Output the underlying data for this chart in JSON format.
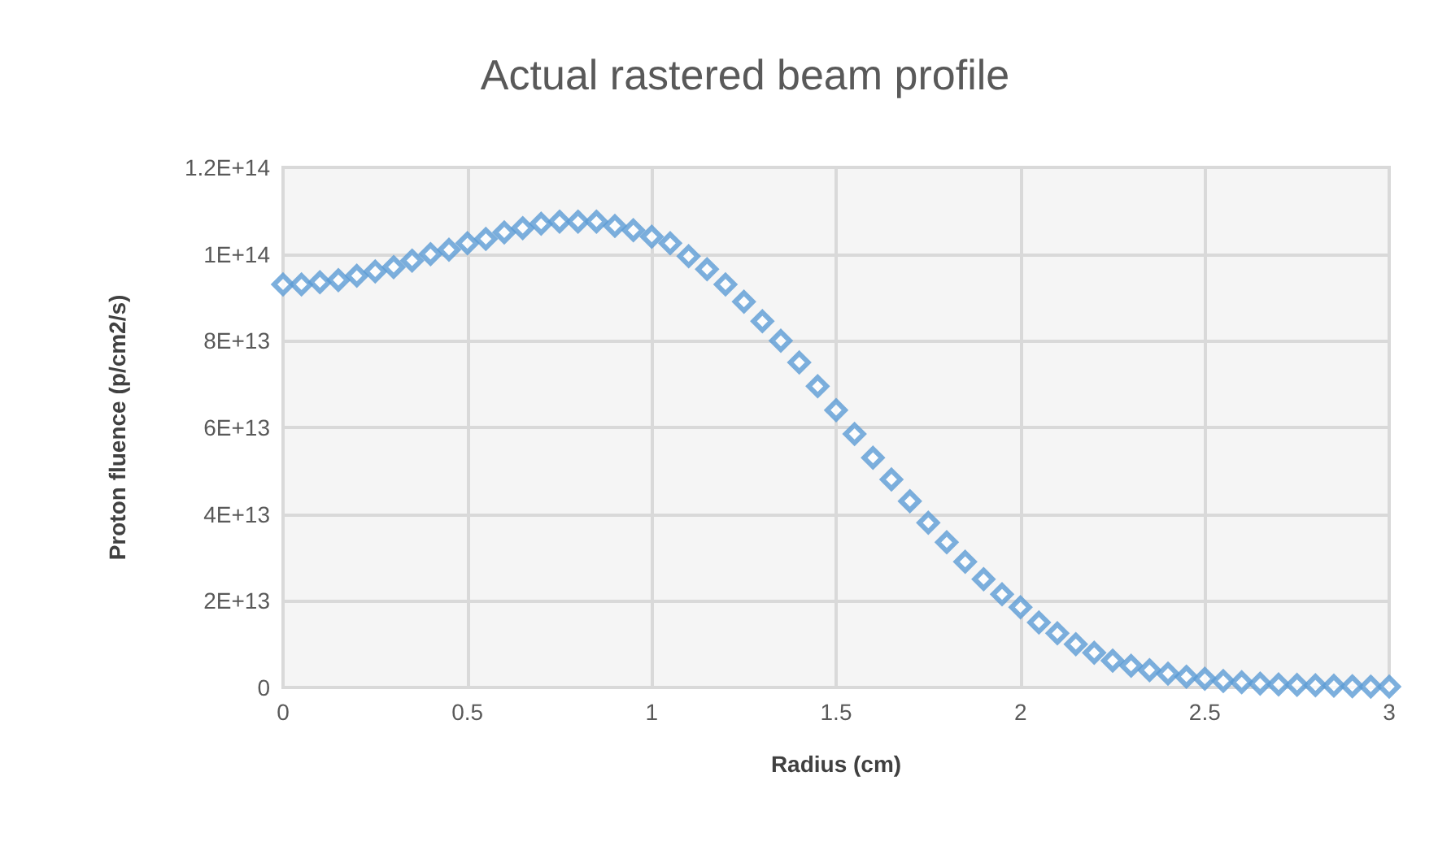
{
  "chart_data": {
    "type": "scatter",
    "title": "Actual rastered beam profile",
    "xlabel": "Radius (cm)",
    "ylabel": "Proton fluence (p/cm2/s)",
    "x": [
      0,
      0.05,
      0.1,
      0.15,
      0.2,
      0.25,
      0.3,
      0.35,
      0.4,
      0.45,
      0.5,
      0.55,
      0.6,
      0.65,
      0.7,
      0.75,
      0.8,
      0.85,
      0.9,
      0.95,
      1,
      1.05,
      1.1,
      1.15,
      1.2,
      1.25,
      1.3,
      1.35,
      1.4,
      1.45,
      1.5,
      1.55,
      1.6,
      1.65,
      1.7,
      1.75,
      1.8,
      1.85,
      1.9,
      1.95,
      2,
      2.05,
      2.1,
      2.15,
      2.2,
      2.25,
      2.3,
      2.35,
      2.4,
      2.45,
      2.5,
      2.55,
      2.6,
      2.65,
      2.7,
      2.75,
      2.8,
      2.85,
      2.9,
      2.95,
      3
    ],
    "series": [
      {
        "color": "#5b9bd5",
        "values": [
          93000000000000.0,
          93000000000000.0,
          93500000000000.0,
          94000000000000.0,
          95000000000000.0,
          96000000000000.0,
          97000000000000.0,
          98500000000000.0,
          100000000000000.0,
          101000000000000.0,
          102500000000000.0,
          103500000000000.0,
          105000000000000.0,
          106000000000000.0,
          107000000000000.0,
          107500000000000.0,
          107500000000000.0,
          107500000000000.0,
          106500000000000.0,
          105500000000000.0,
          104000000000000.0,
          102500000000000.0,
          99500000000000.0,
          96500000000000.0,
          93000000000000.0,
          89000000000000.0,
          84500000000000.0,
          80000000000000.0,
          75000000000000.0,
          69500000000000.0,
          64000000000000.0,
          58500000000000.0,
          53000000000000.0,
          48000000000000.0,
          43000000000000.0,
          38000000000000.0,
          33500000000000.0,
          29000000000000.0,
          25000000000000.0,
          21500000000000.0,
          18500000000000.0,
          15000000000000.0,
          12500000000000.0,
          10000000000000.0,
          8000000000000.0,
          6200000000000.0,
          5000000000000.0,
          4000000000000.0,
          3200000000000.0,
          2500000000000.0,
          2000000000000.0,
          1500000000000.0,
          1200000000000.0,
          900000000000.0,
          700000000000.0,
          600000000000.0,
          500000000000.0,
          400000000000.0,
          300000000000.0,
          200000000000.0,
          200000000000.0
        ]
      }
    ],
    "xlim": [
      0,
      3
    ],
    "xticks": [
      0,
      0.5,
      1,
      1.5,
      2,
      2.5,
      3
    ],
    "ylim": [
      0,
      120000000000000.0
    ],
    "yticks": [
      0,
      {
        "value": 20000000000000.0,
        "label": "2E+13"
      },
      {
        "value": 40000000000000.0,
        "label": "4E+13"
      },
      {
        "value": 60000000000000.0,
        "label": "6E+13"
      },
      {
        "value": 80000000000000.0,
        "label": "8E+13"
      },
      {
        "value": 100000000000000.0,
        "label": "1E+14"
      },
      {
        "value": 120000000000000.0,
        "label": "1.2E+14"
      }
    ],
    "grid": true,
    "marker": "diamond"
  }
}
